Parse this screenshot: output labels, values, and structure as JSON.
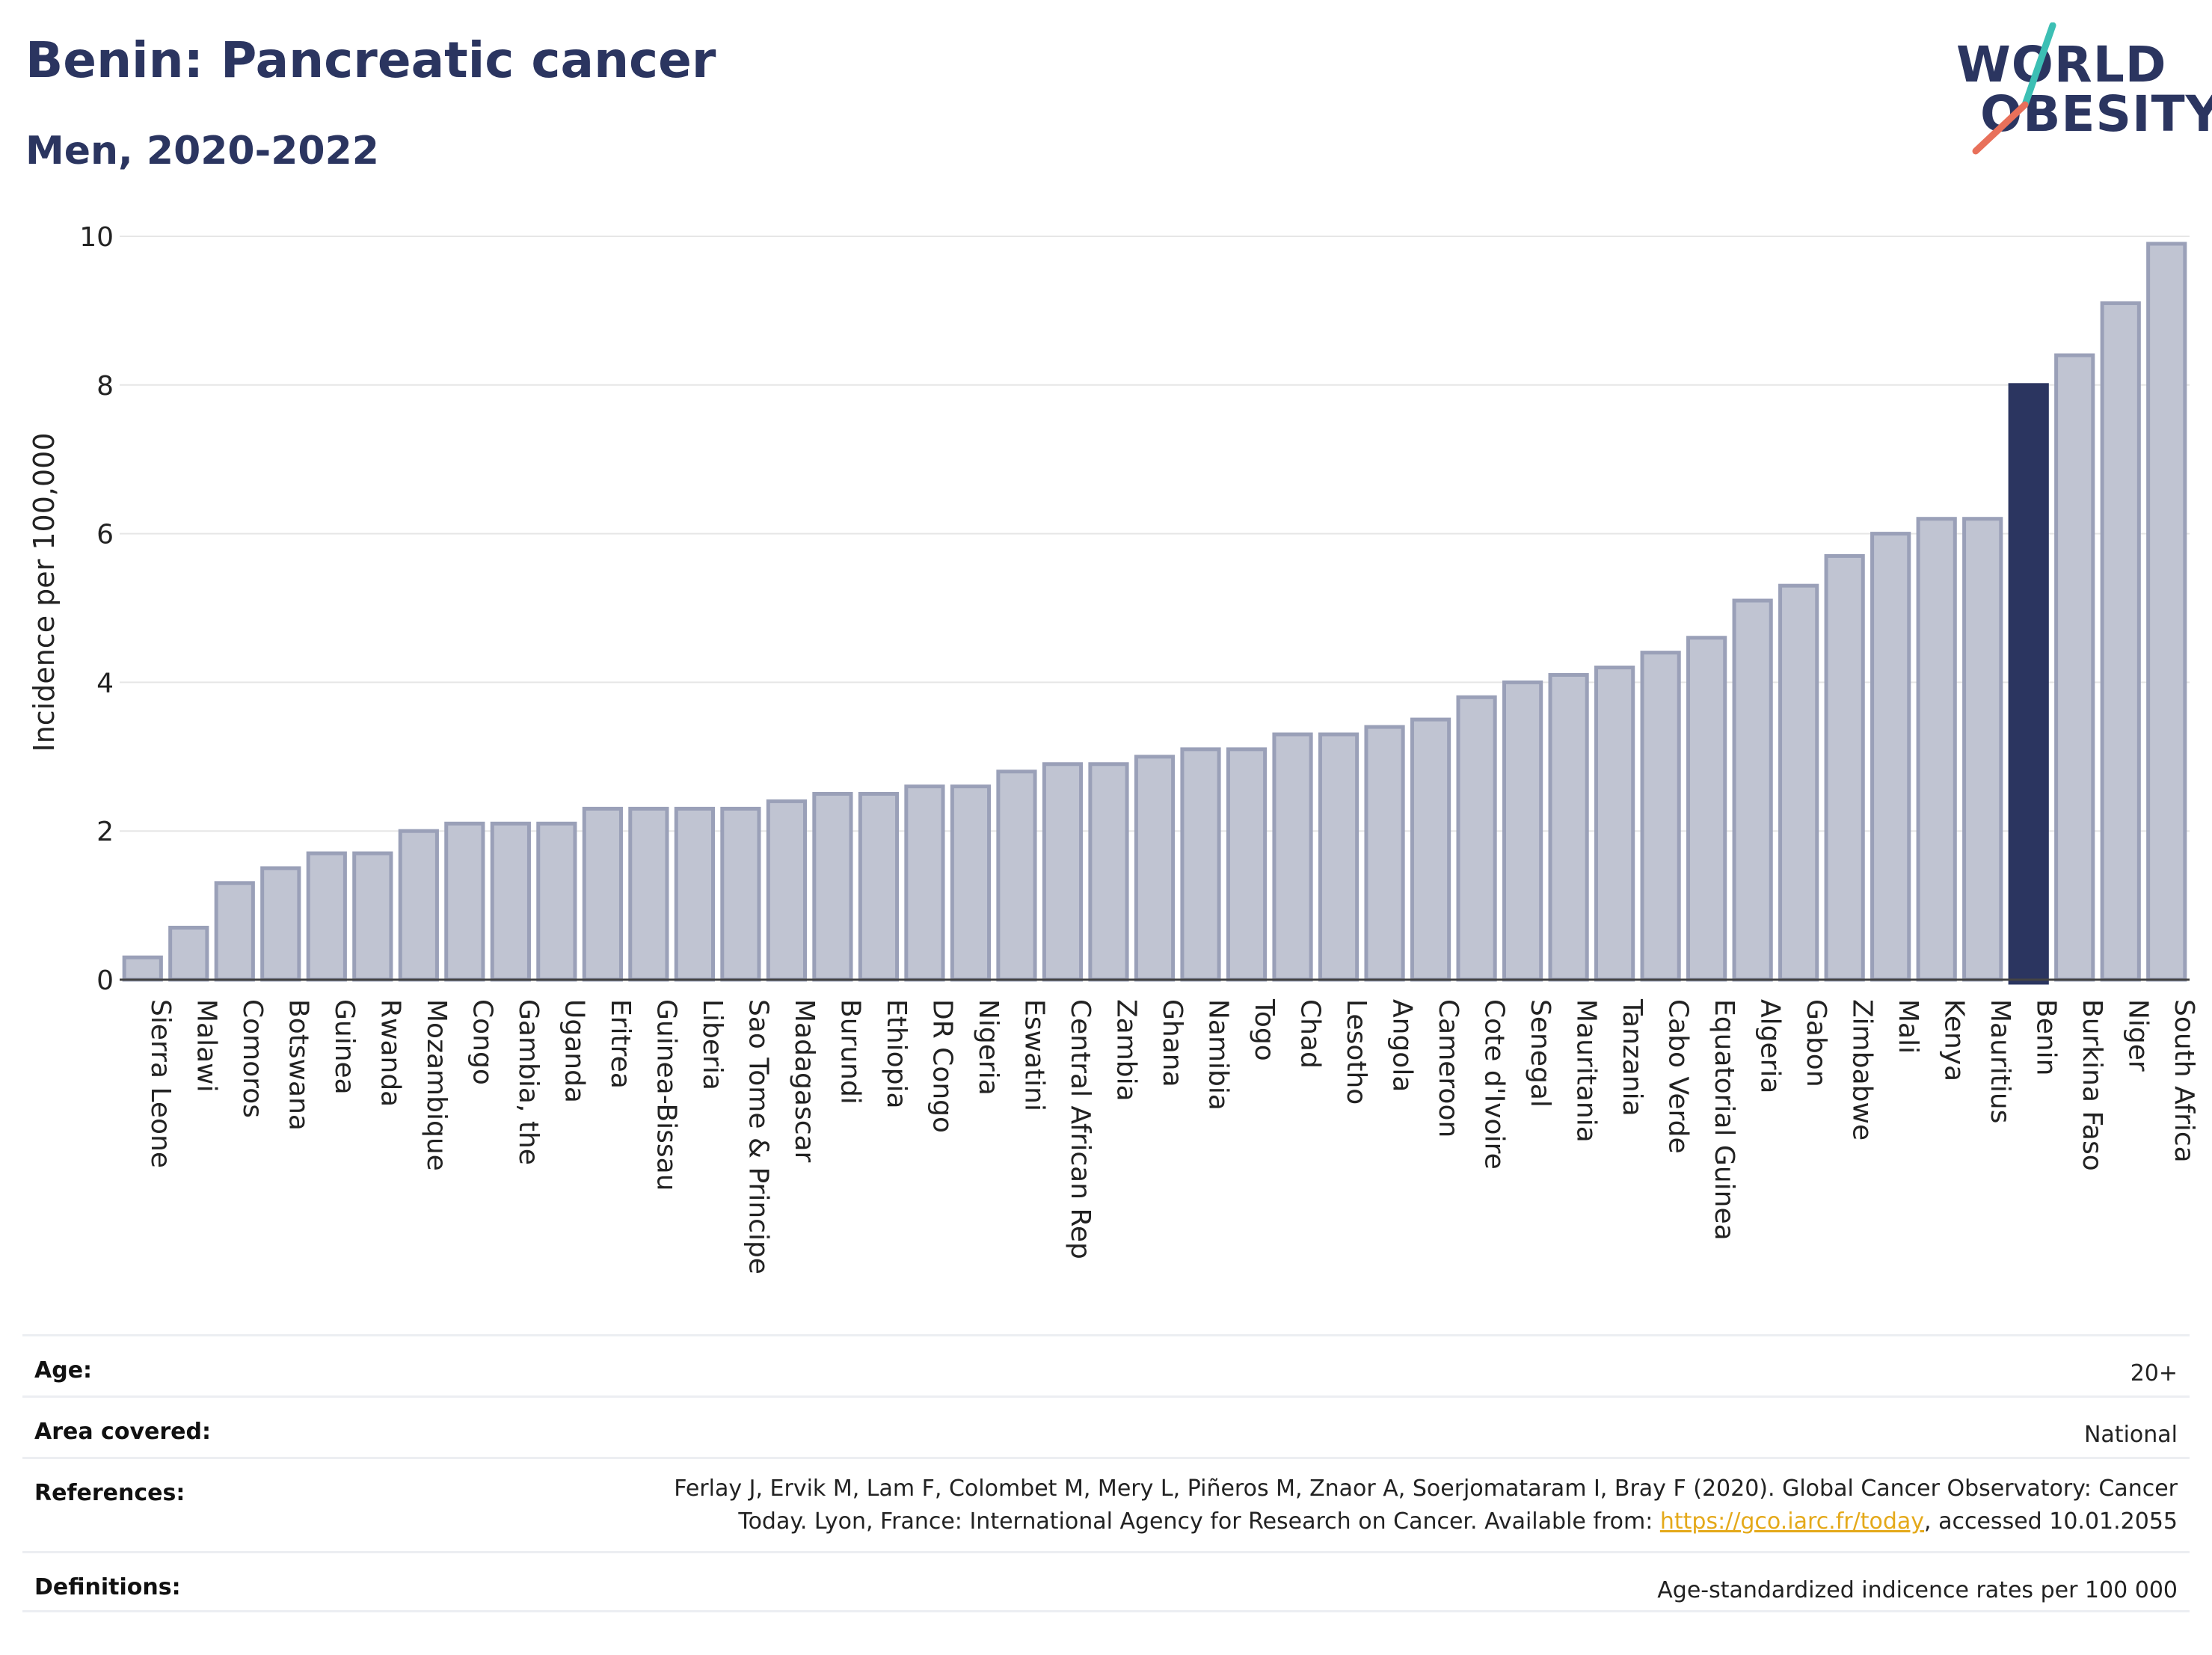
{
  "header": {
    "title": "Benin: Pancreatic cancer",
    "subtitle": "Men, 2020-2022"
  },
  "logo": {
    "line1": "WORLD",
    "line2": "OBESITY"
  },
  "colors": {
    "bar_fill": "#c0c4d2",
    "bar_stroke": "#9aa0b8",
    "highlight": "#2b3560",
    "grid": "#e6e6e6",
    "logo_teal": "#3cbfb4",
    "logo_coral": "#e8705a",
    "link": "#e4a91a"
  },
  "chart_data": {
    "type": "bar",
    "title": "Benin: Pancreatic cancer",
    "subtitle": "Men, 2020-2022",
    "ylabel": "Incidence per 100,000",
    "xlabel": "",
    "ylim": [
      0,
      10
    ],
    "yticks": [
      0,
      2,
      4,
      6,
      8,
      10
    ],
    "grid": true,
    "highlight": "Benin",
    "categories": [
      "Sierra Leone",
      "Malawi",
      "Comoros",
      "Botswana",
      "Guinea",
      "Rwanda",
      "Mozambique",
      "Congo",
      "Gambia, the",
      "Uganda",
      "Eritrea",
      "Guinea-Bissau",
      "Liberia",
      "Sao Tome & Principe",
      "Madagascar",
      "Burundi",
      "Ethiopia",
      "DR Congo",
      "Nigeria",
      "Eswatini",
      "Central African Rep",
      "Zambia",
      "Ghana",
      "Namibia",
      "Togo",
      "Chad",
      "Lesotho",
      "Angola",
      "Cameroon",
      "Cote d'Ivoire",
      "Senegal",
      "Mauritania",
      "Tanzania",
      "Cabo Verde",
      "Equatorial Guinea",
      "Algeria",
      "Gabon",
      "Zimbabwe",
      "Mali",
      "Kenya",
      "Mauritius",
      "Benin",
      "Burkina Faso",
      "Niger",
      "South Africa"
    ],
    "values": [
      0.3,
      0.7,
      1.3,
      1.5,
      1.7,
      1.7,
      2.0,
      2.1,
      2.1,
      2.1,
      2.3,
      2.3,
      2.3,
      2.3,
      2.4,
      2.5,
      2.5,
      2.6,
      2.6,
      2.8,
      2.9,
      2.9,
      3.0,
      3.1,
      3.1,
      3.3,
      3.3,
      3.4,
      3.5,
      3.8,
      4.0,
      4.1,
      4.2,
      4.4,
      4.6,
      5.1,
      5.3,
      5.7,
      6.0,
      6.2,
      6.2,
      8.0,
      8.4,
      9.1,
      9.9
    ]
  },
  "meta": {
    "age_label": "Age:",
    "age_value": "20+",
    "area_label": "Area covered:",
    "area_value": "National",
    "references_label": "References:",
    "references_line1": "Ferlay J, Ervik M, Lam F, Colombet M, Mery L, Piñeros M, Znaor A, Soerjomataram I, Bray F (2020). Global Cancer Observatory: Cancer",
    "references_line2_pre": "Today. Lyon, France: International Agency for Research on Cancer. Available from: ",
    "references_link": "https://gco.iarc.fr/today",
    "references_line2_post": ", accessed 10.01.2055",
    "definitions_label": "Definitions:",
    "definitions_value": "Age-standardized indicence rates per 100 000"
  }
}
